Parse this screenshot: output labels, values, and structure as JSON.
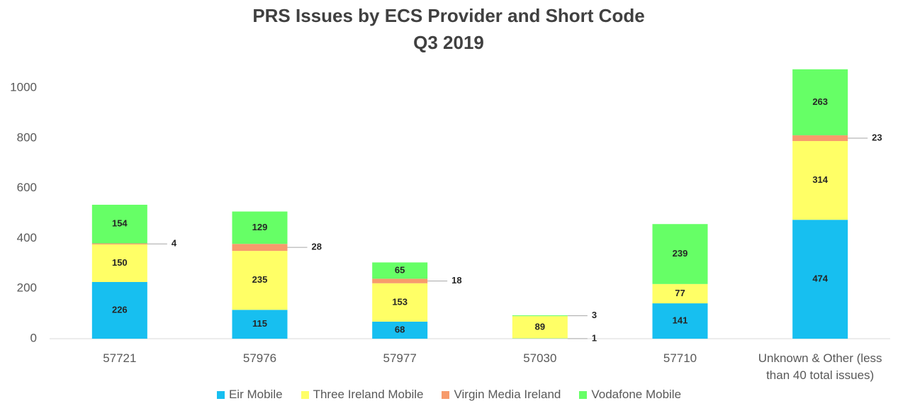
{
  "chart_data": {
    "type": "stacked_bar",
    "title": "PRS Issues by ECS Provider and Short Code",
    "subtitle": "Q3 2019",
    "categories": [
      "57721",
      "57976",
      "57977",
      "57030",
      "57710",
      "Unknown & Other (less than 40 total issues)"
    ],
    "series": [
      {
        "name": "Eir Mobile",
        "color": "#17bff0",
        "values": [
          226,
          115,
          68,
          1,
          141,
          474
        ]
      },
      {
        "name": "Three Ireland Mobile",
        "color": "#ffff66",
        "values": [
          150,
          235,
          153,
          89,
          77,
          314
        ]
      },
      {
        "name": "Virgin Media Ireland",
        "color": "#f79b6c",
        "values": [
          4,
          28,
          18,
          null,
          null,
          23
        ]
      },
      {
        "name": "Vodafone Mobile",
        "color": "#66ff66",
        "values": [
          154,
          129,
          65,
          3,
          239,
          263
        ]
      }
    ],
    "ylim": [
      0,
      1100
    ],
    "yticks": [
      0,
      200,
      400,
      600,
      800,
      1000
    ],
    "grid": false,
    "legend": "bottom"
  }
}
